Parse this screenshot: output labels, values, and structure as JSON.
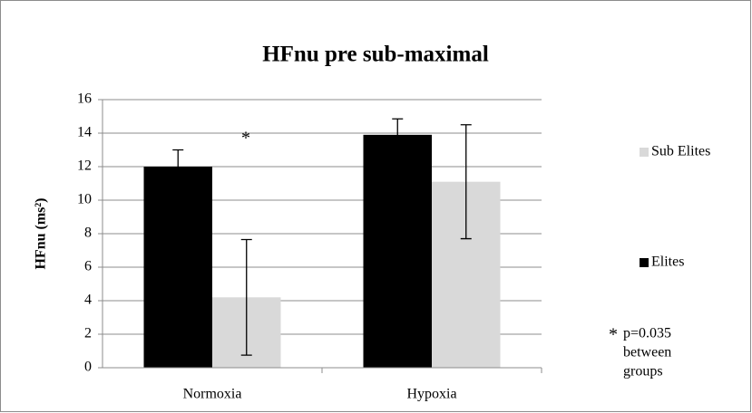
{
  "chart_data": {
    "type": "bar",
    "title": "HFnu pre sub-maximal",
    "y_label": "HFnu (ms²)",
    "categories": [
      "Normoxia",
      "Hypoxia"
    ],
    "series": [
      {
        "name": "Elites",
        "color": "#000000",
        "values": [
          12,
          13.9
        ],
        "errors": [
          1,
          0.95
        ]
      },
      {
        "name": "Sub Elites",
        "color": "#d9d9d9",
        "values": [
          4.2,
          11.1
        ],
        "errors": [
          3.45,
          3.4
        ]
      }
    ],
    "ylim": [
      0,
      16
    ],
    "yticks": [
      0,
      2,
      4,
      6,
      8,
      10,
      12,
      14,
      16
    ],
    "grid": true,
    "annotations": {
      "marker": "*",
      "note": [
        "p=0.035",
        "between",
        "groups"
      ]
    }
  }
}
